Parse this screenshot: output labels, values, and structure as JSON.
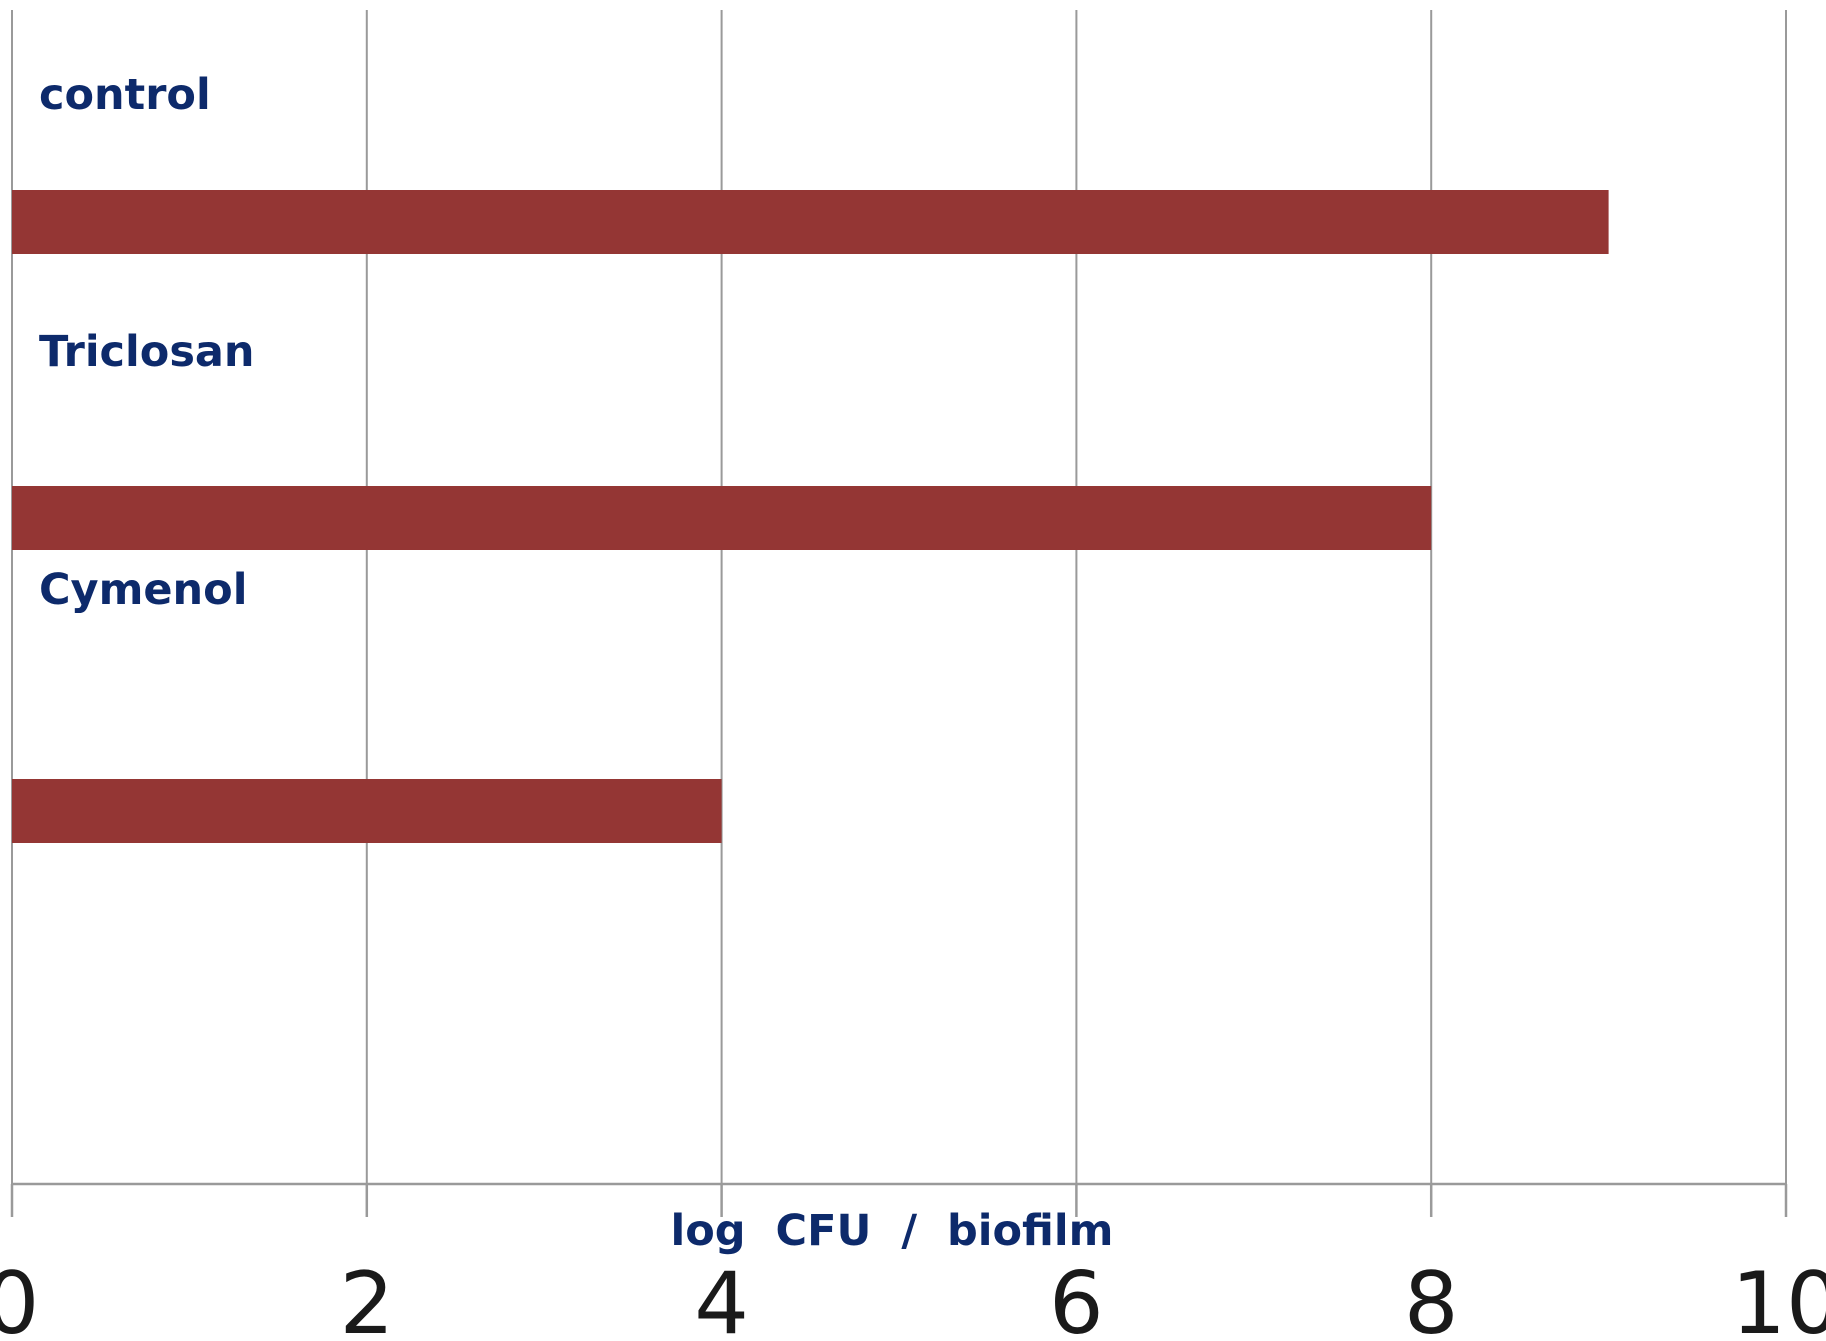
{
  "chart_data": {
    "type": "bar",
    "orientation": "horizontal",
    "categories": [
      "control",
      "Triclosan",
      "Cymenol"
    ],
    "values": [
      9,
      8,
      4
    ],
    "xlabel": "log  CFU  /  biofilm",
    "ylabel": "",
    "xlim": [
      0,
      10
    ],
    "xticks": [
      0,
      2,
      4,
      6,
      8,
      10
    ],
    "grid": true,
    "legend": "none",
    "colors": {
      "bar": "#943634",
      "label": "#0d2a6b",
      "grid": "#9a9a9a"
    }
  }
}
